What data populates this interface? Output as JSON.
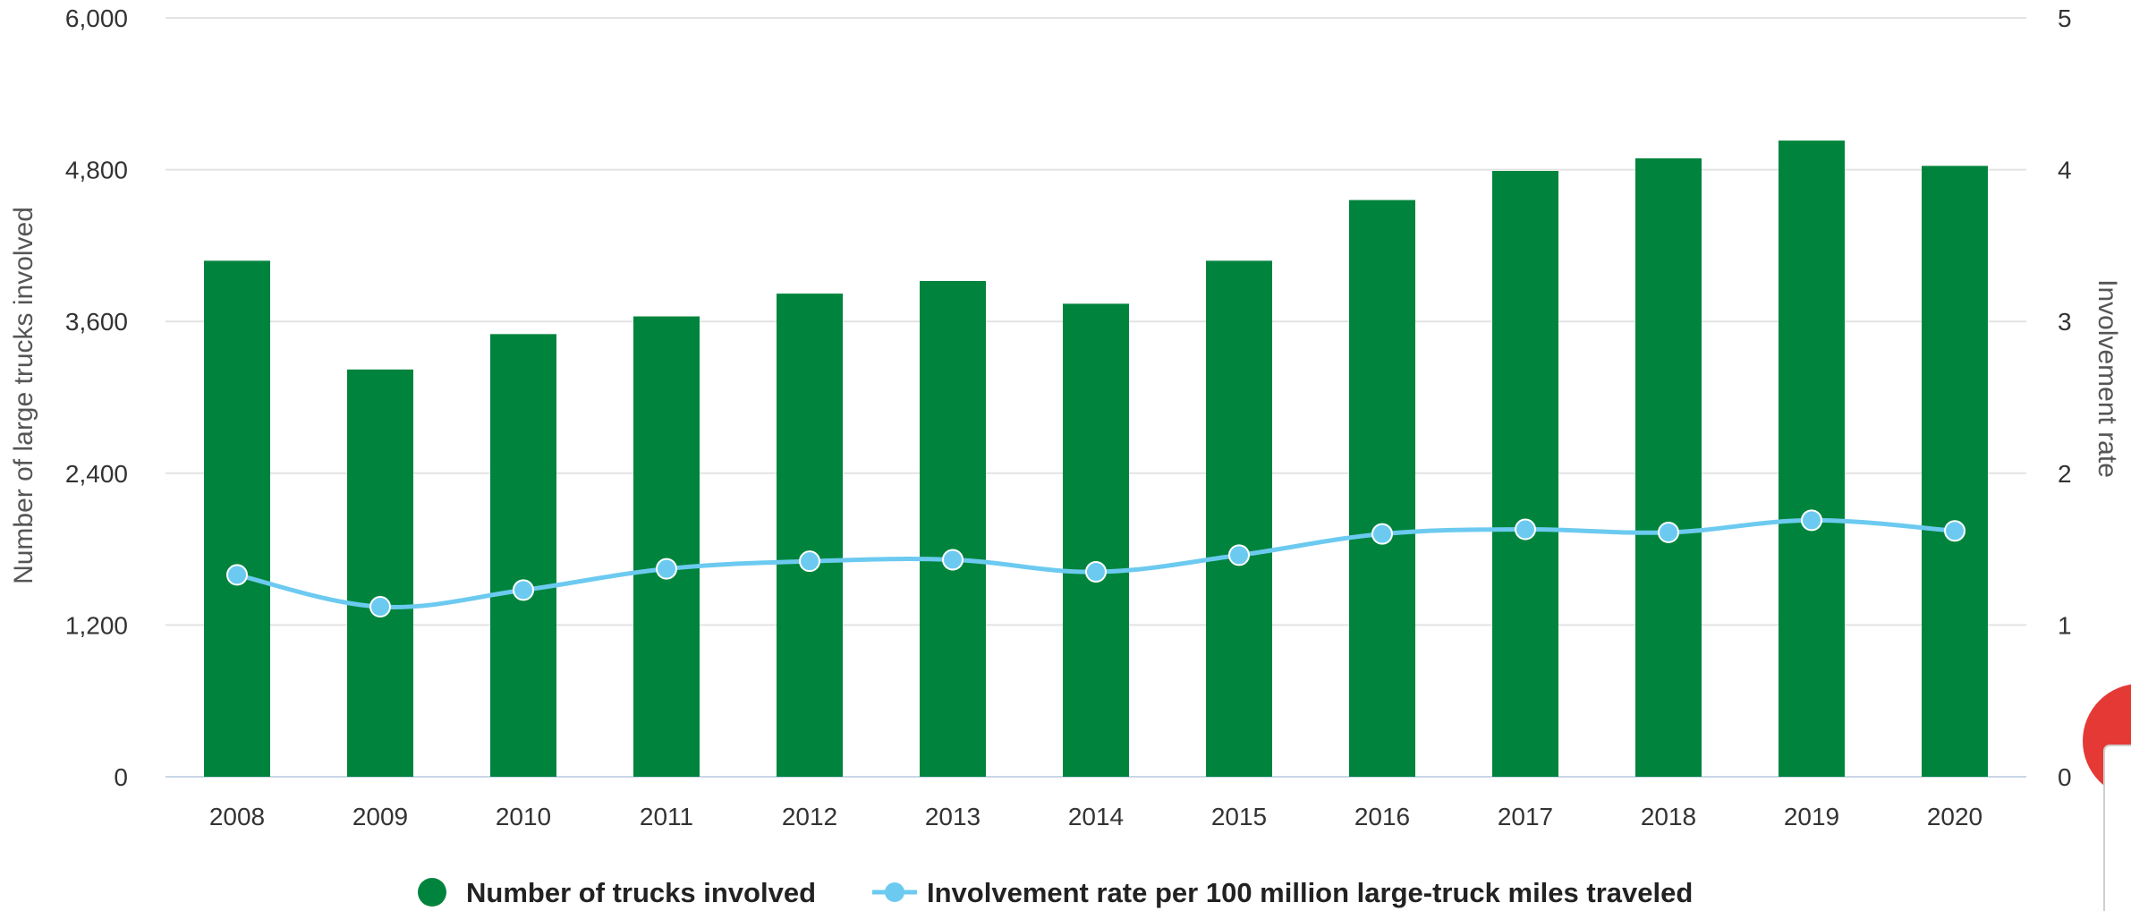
{
  "colors": {
    "bar": "#00843d",
    "line": "#6ccaf0",
    "grid": "#e3e3e3",
    "partial_circle": "#e53935"
  },
  "chart_data": {
    "type": "bar",
    "categories": [
      "2008",
      "2009",
      "2010",
      "2011",
      "2012",
      "2013",
      "2014",
      "2015",
      "2016",
      "2017",
      "2018",
      "2019",
      "2020"
    ],
    "series": [
      {
        "name": "Number of trucks involved",
        "type": "bar",
        "axis": "left",
        "values": [
          4080,
          3220,
          3500,
          3640,
          3820,
          3920,
          3740,
          4080,
          4560,
          4790,
          4890,
          5030,
          4830
        ]
      },
      {
        "name": "Involvement rate per 100 million large-truck miles traveled",
        "type": "line",
        "axis": "right",
        "values": [
          1.33,
          1.12,
          1.23,
          1.37,
          1.42,
          1.43,
          1.35,
          1.46,
          1.6,
          1.63,
          1.61,
          1.69,
          1.62
        ]
      }
    ],
    "y_left": {
      "label": "Number of large trucks involved",
      "range": [
        0,
        6000
      ],
      "ticks": [
        "0",
        "1,200",
        "2,400",
        "3,600",
        "4,800",
        "6,000"
      ]
    },
    "y_right": {
      "label": "Involvement rate",
      "range": [
        0,
        5
      ],
      "ticks": [
        "0",
        "1",
        "2",
        "3",
        "4",
        "5"
      ]
    },
    "legend": {
      "position": "bottom",
      "items": [
        "Number of trucks involved",
        "Involvement rate per 100 million large-truck miles traveled"
      ]
    },
    "grid": true
  }
}
